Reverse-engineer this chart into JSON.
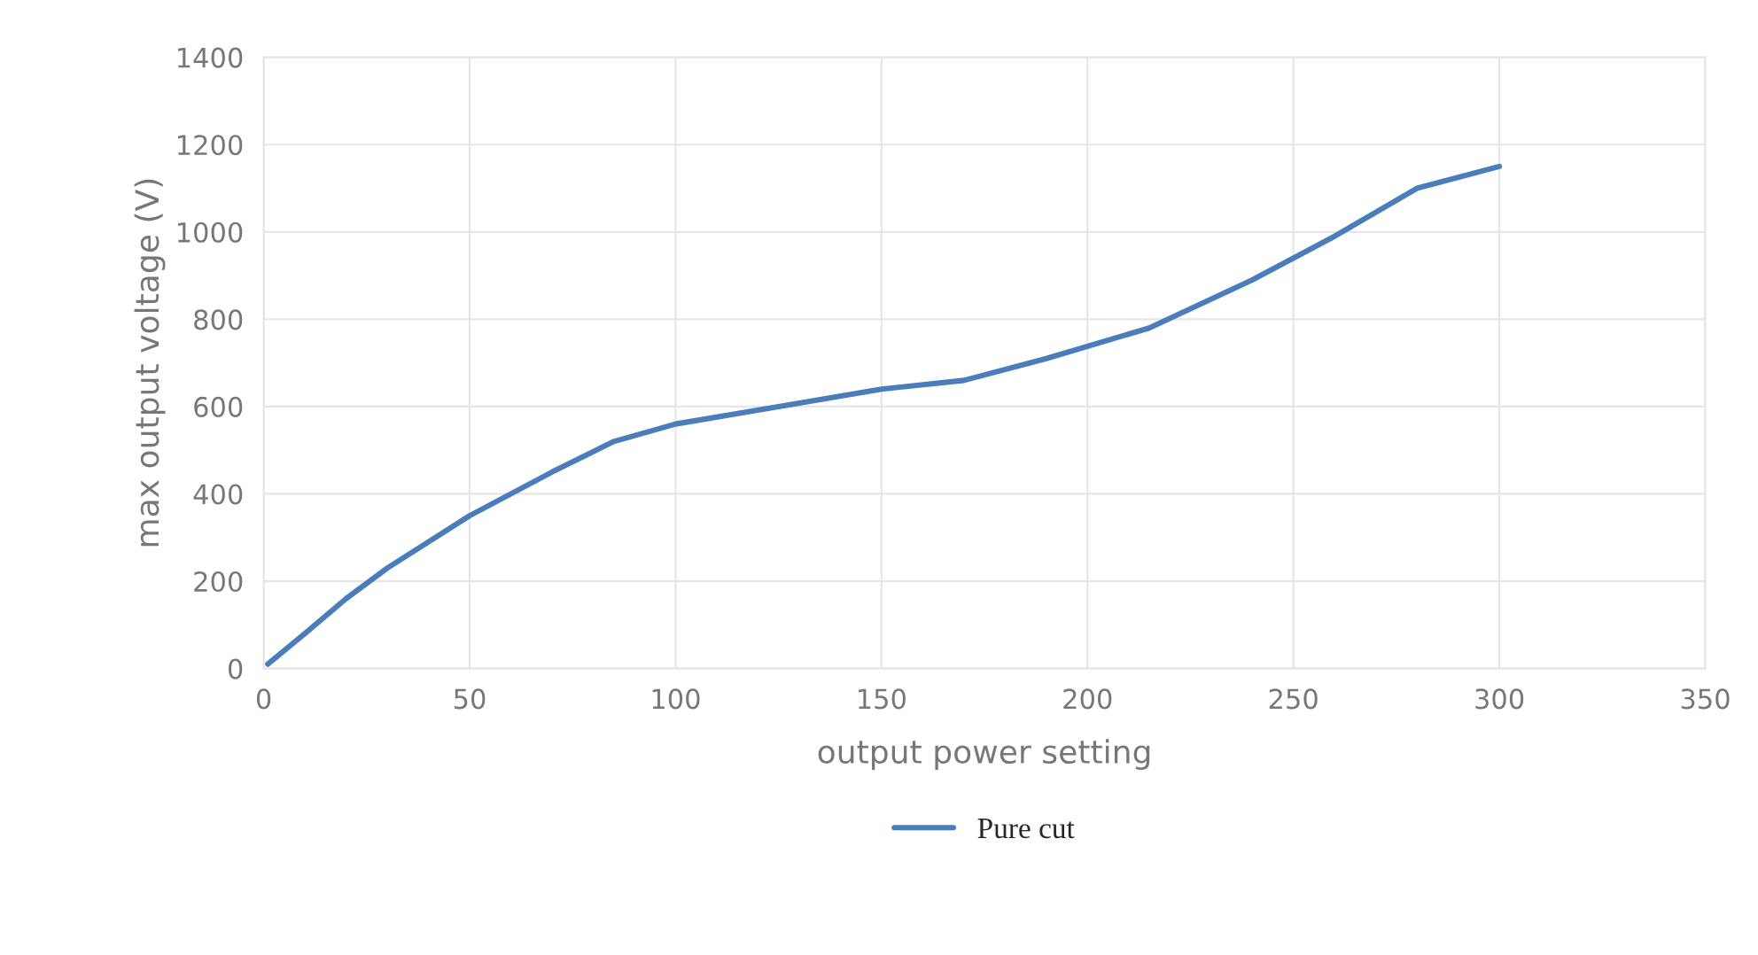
{
  "chart_data": {
    "type": "line",
    "xlabel": "output power setting",
    "ylabel": "max output voltage (V)",
    "xlim": [
      0,
      350
    ],
    "xticks": [
      0,
      50,
      100,
      150,
      200,
      250,
      300,
      350
    ],
    "ylim": [
      0,
      1400
    ],
    "yticks": [
      0,
      200,
      400,
      600,
      800,
      1000,
      1200,
      1400
    ],
    "grid": true,
    "legend": "bottom",
    "line_style": "solid",
    "marker": "none",
    "series": [
      {
        "name": "Pure cut",
        "color": "#4a7ebb",
        "x": [
          1,
          10,
          20,
          30,
          50,
          70,
          85,
          100,
          125,
          150,
          170,
          190,
          215,
          240,
          260,
          280,
          300
        ],
        "values": [
          10,
          80,
          160,
          230,
          350,
          450,
          520,
          560,
          600,
          640,
          660,
          710,
          780,
          890,
          990,
          1100,
          1150
        ]
      }
    ]
  }
}
